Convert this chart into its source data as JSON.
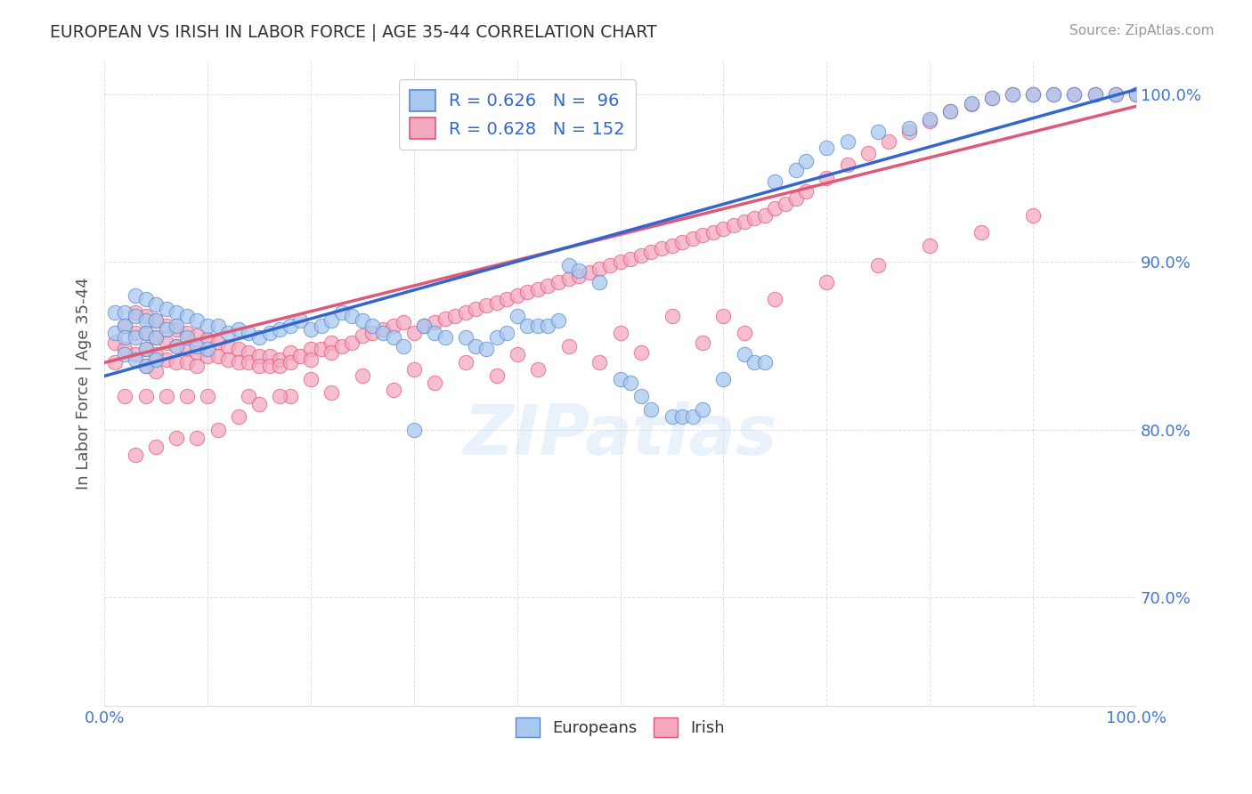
{
  "title": "EUROPEAN VS IRISH IN LABOR FORCE | AGE 35-44 CORRELATION CHART",
  "source": "Source: ZipAtlas.com",
  "ylabel": "In Labor Force | Age 35-44",
  "watermark": "ZIPatlas",
  "xlim": [
    0.0,
    1.0
  ],
  "ylim": [
    0.635,
    1.02
  ],
  "ytick_positions": [
    0.7,
    0.8,
    0.9,
    1.0
  ],
  "ytick_labels": [
    "70.0%",
    "80.0%",
    "90.0%",
    "100.0%"
  ],
  "legend_european_R": "R = 0.626",
  "legend_european_N": "N =  96",
  "legend_irish_R": "R = 0.628",
  "legend_irish_N": "N = 152",
  "european_color": "#A8C8F0",
  "irish_color": "#F4A8BE",
  "european_edge_color": "#5588CC",
  "irish_edge_color": "#E05878",
  "european_line_color": "#3366CC",
  "irish_line_color": "#E05878",
  "tick_color": "#4477CC",
  "background_color": "#FFFFFF",
  "grid_color": "#CCCCCC",
  "title_color": "#333333",
  "eu_line_x0": 0.0,
  "eu_line_y0": 0.832,
  "eu_line_x1": 1.0,
  "eu_line_y1": 1.003,
  "ir_line_x0": 0.0,
  "ir_line_y0": 0.84,
  "ir_line_x1": 1.0,
  "ir_line_y1": 0.993,
  "european_scatter_x": [
    0.01,
    0.01,
    0.02,
    0.02,
    0.02,
    0.02,
    0.03,
    0.03,
    0.03,
    0.03,
    0.04,
    0.04,
    0.04,
    0.04,
    0.04,
    0.05,
    0.05,
    0.05,
    0.05,
    0.06,
    0.06,
    0.07,
    0.07,
    0.07,
    0.08,
    0.08,
    0.09,
    0.09,
    0.1,
    0.1,
    0.11,
    0.12,
    0.13,
    0.14,
    0.15,
    0.16,
    0.17,
    0.18,
    0.19,
    0.2,
    0.21,
    0.22,
    0.23,
    0.24,
    0.25,
    0.26,
    0.27,
    0.28,
    0.29,
    0.3,
    0.31,
    0.32,
    0.33,
    0.35,
    0.36,
    0.37,
    0.38,
    0.39,
    0.4,
    0.41,
    0.42,
    0.43,
    0.44,
    0.45,
    0.46,
    0.48,
    0.5,
    0.51,
    0.52,
    0.53,
    0.55,
    0.56,
    0.57,
    0.58,
    0.6,
    0.62,
    0.63,
    0.64,
    0.65,
    0.67,
    0.68,
    0.7,
    0.72,
    0.75,
    0.78,
    0.8,
    0.82,
    0.84,
    0.86,
    0.88,
    0.9,
    0.92,
    0.94,
    0.96,
    0.98,
    1.0
  ],
  "european_scatter_y": [
    0.87,
    0.858,
    0.87,
    0.862,
    0.855,
    0.845,
    0.88,
    0.868,
    0.855,
    0.842,
    0.878,
    0.865,
    0.858,
    0.848,
    0.838,
    0.875,
    0.865,
    0.855,
    0.842,
    0.872,
    0.86,
    0.87,
    0.862,
    0.85,
    0.868,
    0.855,
    0.865,
    0.85,
    0.862,
    0.848,
    0.862,
    0.858,
    0.86,
    0.858,
    0.855,
    0.858,
    0.86,
    0.862,
    0.865,
    0.86,
    0.862,
    0.865,
    0.87,
    0.868,
    0.865,
    0.862,
    0.858,
    0.855,
    0.85,
    0.8,
    0.862,
    0.858,
    0.855,
    0.855,
    0.85,
    0.848,
    0.855,
    0.858,
    0.868,
    0.862,
    0.862,
    0.862,
    0.865,
    0.898,
    0.895,
    0.888,
    0.83,
    0.828,
    0.82,
    0.812,
    0.808,
    0.808,
    0.808,
    0.812,
    0.83,
    0.845,
    0.84,
    0.84,
    0.948,
    0.955,
    0.96,
    0.968,
    0.972,
    0.978,
    0.98,
    0.985,
    0.99,
    0.995,
    0.998,
    1.0,
    1.0,
    1.0,
    1.0,
    1.0,
    1.0,
    1.0
  ],
  "irish_scatter_x": [
    0.01,
    0.01,
    0.02,
    0.02,
    0.03,
    0.03,
    0.03,
    0.04,
    0.04,
    0.04,
    0.04,
    0.05,
    0.05,
    0.05,
    0.05,
    0.06,
    0.06,
    0.06,
    0.07,
    0.07,
    0.07,
    0.08,
    0.08,
    0.08,
    0.09,
    0.09,
    0.09,
    0.1,
    0.1,
    0.11,
    0.11,
    0.12,
    0.12,
    0.13,
    0.13,
    0.14,
    0.14,
    0.15,
    0.15,
    0.16,
    0.16,
    0.17,
    0.17,
    0.18,
    0.18,
    0.19,
    0.2,
    0.2,
    0.21,
    0.22,
    0.22,
    0.23,
    0.24,
    0.25,
    0.26,
    0.27,
    0.28,
    0.29,
    0.3,
    0.31,
    0.32,
    0.33,
    0.34,
    0.35,
    0.36,
    0.37,
    0.38,
    0.39,
    0.4,
    0.41,
    0.42,
    0.43,
    0.44,
    0.45,
    0.46,
    0.47,
    0.48,
    0.49,
    0.5,
    0.51,
    0.52,
    0.53,
    0.54,
    0.55,
    0.56,
    0.57,
    0.58,
    0.59,
    0.6,
    0.61,
    0.62,
    0.63,
    0.64,
    0.65,
    0.66,
    0.67,
    0.68,
    0.7,
    0.72,
    0.74,
    0.76,
    0.78,
    0.8,
    0.82,
    0.84,
    0.86,
    0.88,
    0.9,
    0.92,
    0.94,
    0.96,
    0.98,
    1.0,
    0.6,
    0.65,
    0.7,
    0.75,
    0.8,
    0.85,
    0.9,
    0.5,
    0.55,
    0.45,
    0.4,
    0.35,
    0.3,
    0.25,
    0.2,
    0.62,
    0.58,
    0.52,
    0.48,
    0.42,
    0.38,
    0.32,
    0.28,
    0.22,
    0.18,
    0.14,
    0.1,
    0.08,
    0.06,
    0.04,
    0.02,
    0.07,
    0.05,
    0.03,
    0.09,
    0.11,
    0.13,
    0.15,
    0.17
  ],
  "irish_scatter_y": [
    0.852,
    0.84,
    0.862,
    0.848,
    0.87,
    0.858,
    0.845,
    0.868,
    0.858,
    0.848,
    0.838,
    0.865,
    0.855,
    0.845,
    0.835,
    0.862,
    0.852,
    0.842,
    0.86,
    0.85,
    0.84,
    0.858,
    0.848,
    0.84,
    0.856,
    0.846,
    0.838,
    0.854,
    0.844,
    0.852,
    0.844,
    0.85,
    0.842,
    0.848,
    0.84,
    0.846,
    0.84,
    0.844,
    0.838,
    0.844,
    0.838,
    0.842,
    0.838,
    0.846,
    0.84,
    0.844,
    0.848,
    0.842,
    0.848,
    0.852,
    0.846,
    0.85,
    0.852,
    0.856,
    0.858,
    0.86,
    0.862,
    0.864,
    0.858,
    0.862,
    0.864,
    0.866,
    0.868,
    0.87,
    0.872,
    0.874,
    0.876,
    0.878,
    0.88,
    0.882,
    0.884,
    0.886,
    0.888,
    0.89,
    0.892,
    0.894,
    0.896,
    0.898,
    0.9,
    0.902,
    0.904,
    0.906,
    0.908,
    0.91,
    0.912,
    0.914,
    0.916,
    0.918,
    0.92,
    0.922,
    0.924,
    0.926,
    0.928,
    0.932,
    0.935,
    0.938,
    0.942,
    0.95,
    0.958,
    0.965,
    0.972,
    0.978,
    0.984,
    0.99,
    0.994,
    0.998,
    1.0,
    1.0,
    1.0,
    1.0,
    1.0,
    1.0,
    1.0,
    0.868,
    0.878,
    0.888,
    0.898,
    0.91,
    0.918,
    0.928,
    0.858,
    0.868,
    0.85,
    0.845,
    0.84,
    0.836,
    0.832,
    0.83,
    0.858,
    0.852,
    0.846,
    0.84,
    0.836,
    0.832,
    0.828,
    0.824,
    0.822,
    0.82,
    0.82,
    0.82,
    0.82,
    0.82,
    0.82,
    0.82,
    0.795,
    0.79,
    0.785,
    0.795,
    0.8,
    0.808,
    0.815,
    0.82
  ]
}
